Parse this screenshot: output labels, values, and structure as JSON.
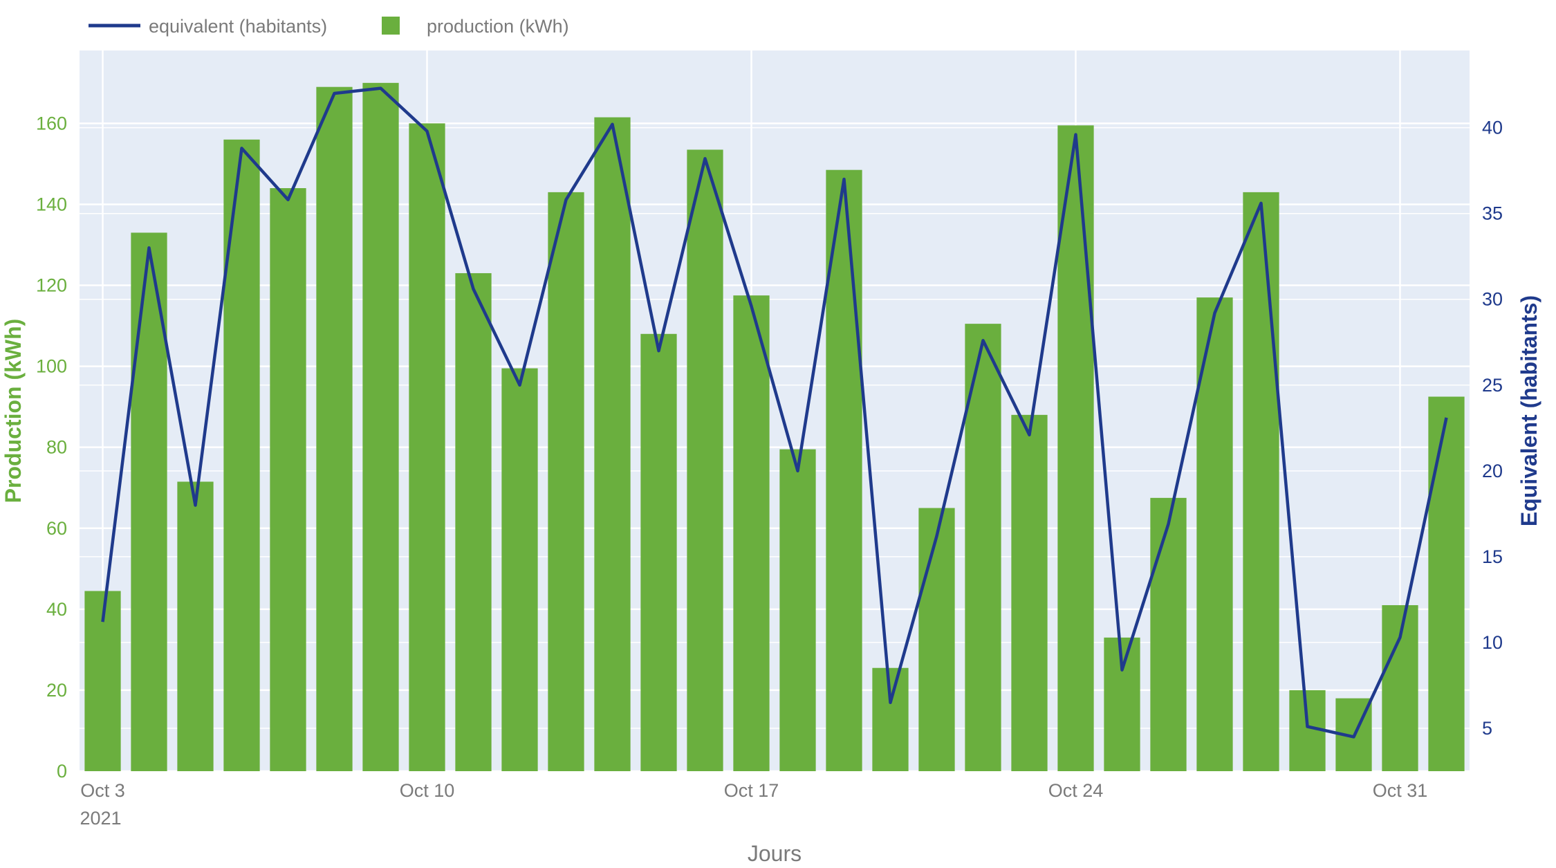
{
  "chart_data": {
    "type": "bar+line",
    "title": "",
    "xlabel": "Jours",
    "ylabel_left": "Production (kWh)",
    "ylabel_right": "Equivalent (habitants)",
    "dates": [
      "2021-10-03",
      "2021-10-04",
      "2021-10-05",
      "2021-10-06",
      "2021-10-07",
      "2021-10-08",
      "2021-10-09",
      "2021-10-10",
      "2021-10-11",
      "2021-10-12",
      "2021-10-13",
      "2021-10-14",
      "2021-10-15",
      "2021-10-16",
      "2021-10-17",
      "2021-10-18",
      "2021-10-19",
      "2021-10-20",
      "2021-10-21",
      "2021-10-22",
      "2021-10-23",
      "2021-10-24",
      "2021-10-25",
      "2021-10-26",
      "2021-10-27",
      "2021-10-28",
      "2021-10-29",
      "2021-10-30",
      "2021-10-31",
      "2021-11-01"
    ],
    "x_ticks": [
      {
        "date": "2021-10-03",
        "label": "Oct 3",
        "sublabel": "2021"
      },
      {
        "date": "2021-10-10",
        "label": "Oct 10",
        "sublabel": ""
      },
      {
        "date": "2021-10-17",
        "label": "Oct 17",
        "sublabel": ""
      },
      {
        "date": "2021-10-24",
        "label": "Oct 24",
        "sublabel": ""
      },
      {
        "date": "2021-10-31",
        "label": "Oct 31",
        "sublabel": ""
      }
    ],
    "y_left": {
      "range": [
        0,
        178
      ],
      "ticks": [
        0,
        20,
        40,
        60,
        80,
        100,
        120,
        140,
        160
      ]
    },
    "y_right": {
      "range": [
        2.5,
        44.5
      ],
      "ticks": [
        5,
        10,
        15,
        20,
        25,
        30,
        35,
        40
      ]
    },
    "series": [
      {
        "name": "production (kWh)",
        "type": "bar",
        "axis": "left",
        "color": "#6aaf3e",
        "values": [
          44.5,
          133,
          71.5,
          156,
          144,
          169,
          170,
          160,
          123,
          99.5,
          143,
          161.5,
          108,
          153.5,
          117.5,
          79.5,
          148.5,
          25.5,
          65,
          110.5,
          88,
          159.5,
          33,
          67.5,
          117,
          143,
          20,
          18,
          41,
          92.5
        ]
      },
      {
        "name": "equivalent (habitants)",
        "type": "line",
        "axis": "right",
        "color": "#1f3a8c",
        "values": [
          11.2,
          33,
          18,
          38.8,
          35.8,
          42,
          42.3,
          39.8,
          30.6,
          25,
          35.8,
          40.2,
          27,
          38.2,
          29.6,
          20,
          37,
          6.5,
          16.2,
          27.6,
          22.1,
          39.6,
          8.4,
          16.9,
          29.2,
          35.6,
          5.1,
          4.5,
          10.3,
          23.1
        ]
      }
    ],
    "legend": {
      "position": "top-left",
      "orientation": "horizontal"
    },
    "grid": true
  }
}
